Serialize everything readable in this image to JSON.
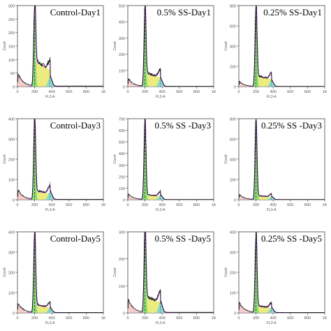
{
  "chart_data": [
    {
      "type": "area",
      "title": "Control-Day1",
      "ylabel": "Count",
      "xlabel": "FL3-A",
      "x_ticks": [
        "0",
        "200",
        "400",
        "600",
        "800",
        "1K"
      ],
      "xlim": [
        0,
        1000
      ],
      "ylim": [
        0,
        300
      ],
      "y_ticks": [
        0,
        50,
        100,
        150,
        200,
        250,
        300
      ],
      "g1_peak": {
        "x": 200,
        "count": 295
      },
      "s_phase_level": 95,
      "g2_peak": {
        "x": 380,
        "count": 35
      }
    },
    {
      "type": "area",
      "title": "0.5% SS-Day1",
      "ylabel": "Count",
      "xlabel": "FL3-A",
      "x_ticks": [
        "0",
        "200",
        "400",
        "600",
        "800",
        "1K"
      ],
      "xlim": [
        0,
        1000
      ],
      "ylim": [
        0,
        500
      ],
      "y_ticks": [
        0,
        100,
        200,
        300,
        400,
        500
      ],
      "g1_peak": {
        "x": 200,
        "count": 470
      },
      "s_phase_level": 85,
      "g2_peak": {
        "x": 380,
        "count": 50
      }
    },
    {
      "type": "area",
      "title": "0.25% SS-Day1",
      "ylabel": "Count",
      "xlabel": "FL3-A",
      "x_ticks": [
        "0",
        "200",
        "400",
        "600",
        "800",
        "1K"
      ],
      "xlim": [
        0,
        1000
      ],
      "ylim": [
        0,
        800
      ],
      "y_ticks": [
        0,
        200,
        400,
        600,
        800
      ],
      "g1_peak": {
        "x": 200,
        "count": 790
      },
      "s_phase_level": 110,
      "g2_peak": {
        "x": 380,
        "count": 60
      }
    },
    {
      "type": "area",
      "title": "Control-Day3",
      "ylabel": "Count",
      "xlabel": "FL3-A",
      "x_ticks": [
        "0",
        "200",
        "400",
        "600",
        "800",
        "1K"
      ],
      "xlim": [
        0,
        1000
      ],
      "ylim": [
        0,
        400
      ],
      "y_ticks": [
        0,
        100,
        200,
        300,
        400
      ],
      "g1_peak": {
        "x": 200,
        "count": 400
      },
      "s_phase_level": 45,
      "g2_peak": {
        "x": 380,
        "count": 40
      }
    },
    {
      "type": "area",
      "title": "0.5% SS -Day3",
      "ylabel": "Count",
      "xlabel": "FL3-A",
      "x_ticks": [
        "0",
        "200",
        "400",
        "600",
        "800",
        "1K"
      ],
      "xlim": [
        0,
        1000
      ],
      "ylim": [
        0,
        700
      ],
      "y_ticks": [
        0,
        100,
        200,
        300,
        400,
        500,
        600,
        700
      ],
      "g1_peak": {
        "x": 200,
        "count": 690
      },
      "s_phase_level": 45,
      "g2_peak": {
        "x": 380,
        "count": 40
      }
    },
    {
      "type": "area",
      "title": "0.25% SS -Day3",
      "ylabel": "Count",
      "xlabel": "FL3-A",
      "x_ticks": [
        "0",
        "200",
        "400",
        "600",
        "800",
        "1K"
      ],
      "xlim": [
        0,
        1000
      ],
      "ylim": [
        0,
        800
      ],
      "y_ticks": [
        0,
        200,
        400,
        600,
        800
      ],
      "g1_peak": {
        "x": 200,
        "count": 780
      },
      "s_phase_level": 40,
      "g2_peak": {
        "x": 380,
        "count": 30
      }
    },
    {
      "type": "area",
      "title": "Control-Day5",
      "ylabel": "Count",
      "xlabel": "FL3-A",
      "x_ticks": [
        "0",
        "200",
        "400",
        "600",
        "800",
        "1K"
      ],
      "xlim": [
        0,
        1000
      ],
      "ylim": [
        0,
        400
      ],
      "y_ticks": [
        0,
        100,
        200,
        300,
        400
      ],
      "g1_peak": {
        "x": 200,
        "count": 395
      },
      "s_phase_level": 40,
      "g2_peak": {
        "x": 380,
        "count": 25
      }
    },
    {
      "type": "area",
      "title": "0.5% SS -Day5",
      "ylabel": "Count",
      "xlabel": "FL3-A",
      "x_ticks": [
        "0",
        "200",
        "400",
        "600",
        "800",
        "1K"
      ],
      "xlim": [
        0,
        1000
      ],
      "ylim": [
        0,
        300
      ],
      "y_ticks": [
        0,
        100,
        200,
        300
      ],
      "g1_peak": {
        "x": 200,
        "count": 300
      },
      "s_phase_level": 60,
      "g2_peak": {
        "x": 380,
        "count": 40
      }
    },
    {
      "type": "area",
      "title": "0.25% SS -Day5",
      "ylabel": "Count",
      "xlabel": "FL3-A",
      "x_ticks": [
        "0",
        "200",
        "400",
        "600",
        "800",
        "1K"
      ],
      "xlim": [
        0,
        1000
      ],
      "ylim": [
        0,
        400
      ],
      "y_ticks": [
        0,
        100,
        200,
        300,
        400
      ],
      "g1_peak": {
        "x": 200,
        "count": 380
      },
      "s_phase_level": 35,
      "g2_peak": {
        "x": 380,
        "count": 25
      }
    }
  ],
  "colors": {
    "g1_fill": "#7ee06a",
    "s_fill": "#e8e86a",
    "g2_fill": "#7fd8d0",
    "debris_fill": "#f0b8b8",
    "fit_line": "#9a38c8",
    "histogram_line": "#111111",
    "marker_line": "#333333"
  }
}
